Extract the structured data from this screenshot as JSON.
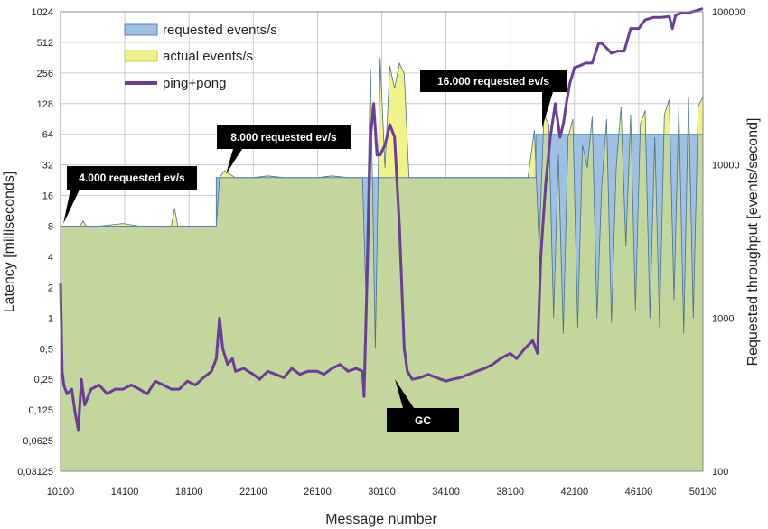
{
  "chart_data": {
    "type": "area",
    "title": "",
    "xlabel": "Message number",
    "ylabel_left": "Latency [milliseconds]",
    "ylabel_right": "Requested throughput [events/second]",
    "x_ticks": [
      "10100",
      "14100",
      "18100",
      "22100",
      "26100",
      "30100",
      "34100",
      "38100",
      "42100",
      "46100",
      "50100"
    ],
    "y_left_ticks": [
      "1024",
      "512",
      "256",
      "128",
      "64",
      "32",
      "16",
      "8",
      "4",
      "2",
      "1",
      "0,5",
      "0,25",
      "0,125",
      "0,0625",
      "0,03125"
    ],
    "y_right_ticks": [
      "100000",
      "10000",
      "1000",
      "100"
    ],
    "xlim": [
      10100,
      50100
    ],
    "ylim_left": [
      0.03125,
      1024
    ],
    "ylim_right": [
      100,
      100000
    ],
    "y_left_scale": "log2",
    "y_right_scale": "log10",
    "grid": true,
    "legend_position": "top-left",
    "colors": {
      "requested": "#9ec0e4",
      "requested_edge": "#4f81bd",
      "actual": "#f2f28a",
      "ping_pong": "#6a3d9a",
      "overlap": "#c3d69b",
      "grid": "#bfbfbf"
    },
    "legend": {
      "requested": "requested events/s",
      "actual": "actual events/s",
      "ping_pong": "ping+pong"
    },
    "annotations": [
      {
        "label": "4.000 requested ev/s",
        "x": 10100,
        "y": 8
      },
      {
        "label": "8.000 requested ev/s",
        "x": 19800,
        "y": 24
      },
      {
        "label": "16.000 requested ev/s",
        "x": 39700,
        "y": 64
      },
      {
        "label": "GC",
        "x": 31300,
        "y": 0.25
      }
    ],
    "series": [
      {
        "name": "requested events/s",
        "type": "area",
        "axis": "left",
        "x": [
          10100,
          19800,
          19800,
          39700,
          39700,
          50100
        ],
        "y": [
          8,
          8,
          24,
          24,
          64,
          64
        ]
      },
      {
        "name": "actual events/s",
        "type": "area",
        "axis": "left",
        "x": [
          10100,
          11300,
          11500,
          11700,
          12500,
          14000,
          15000,
          16000,
          17000,
          17200,
          17400,
          18500,
          19800,
          20000,
          20300,
          21000,
          22100,
          23000,
          24000,
          25000,
          26100,
          27000,
          28000,
          28900,
          29100,
          29400,
          29700,
          30000,
          30300,
          30600,
          30900,
          31200,
          31500,
          31800,
          32100,
          32500,
          33000,
          34100,
          35000,
          36000,
          37000,
          38100,
          39200,
          39600,
          39900,
          40200,
          40500,
          40800,
          41100,
          41400,
          41700,
          42000,
          42300,
          42600,
          42900,
          43200,
          43500,
          43800,
          44100,
          44400,
          44700,
          45000,
          45300,
          45600,
          45900,
          46200,
          46500,
          46800,
          47100,
          47400,
          47700,
          48000,
          48300,
          48600,
          48900,
          49200,
          49500,
          49800,
          50100
        ],
        "y": [
          8,
          8,
          9,
          8,
          8,
          8.5,
          8,
          8,
          8,
          12,
          8,
          8,
          8,
          24,
          28,
          24,
          24,
          25,
          24,
          24,
          24,
          25,
          24,
          24,
          2,
          280,
          0.5,
          360,
          30,
          300,
          180,
          320,
          250,
          24,
          24,
          24,
          24,
          24,
          24,
          24,
          24,
          24,
          24,
          70,
          5,
          100,
          80,
          1,
          40,
          0.7,
          60,
          90,
          0.8,
          50,
          30,
          95,
          1,
          20,
          90,
          0.9,
          30,
          120,
          5,
          100,
          1.2,
          80,
          110,
          1,
          60,
          0.8,
          100,
          140,
          1.5,
          120,
          0.7,
          150,
          1,
          120,
          150
        ]
      },
      {
        "name": "ping+pong",
        "type": "line",
        "axis": "left",
        "x": [
          10100,
          10200,
          10300,
          10500,
          10800,
          11000,
          11200,
          11400,
          11600,
          12000,
          12500,
          13000,
          13500,
          14000,
          14500,
          15000,
          15500,
          16000,
          16500,
          17000,
          17500,
          18000,
          18500,
          19000,
          19500,
          19800,
          20000,
          20200,
          20500,
          20800,
          21000,
          21500,
          22100,
          22500,
          23000,
          23500,
          24000,
          24500,
          25000,
          25500,
          26100,
          26500,
          27000,
          27500,
          28000,
          28500,
          28900,
          29000,
          29200,
          29400,
          29600,
          29800,
          30000,
          30300,
          30600,
          30900,
          31200,
          31500,
          31700,
          32000,
          32500,
          33000,
          33500,
          34100,
          34500,
          35000,
          35500,
          36000,
          36500,
          37000,
          37500,
          38100,
          38500,
          39000,
          39500,
          39800,
          40000,
          40300,
          40600,
          40900,
          41200,
          41400,
          41600,
          41800,
          42100,
          42400,
          42800,
          43200,
          43600,
          43800,
          44100,
          44400,
          44800,
          45200,
          45600,
          46100,
          46500,
          47000,
          47500,
          48000,
          48200,
          48400,
          48800,
          49200,
          49600,
          50100
        ],
        "y": [
          2.2,
          0.3,
          0.22,
          0.18,
          0.2,
          0.12,
          0.08,
          0.25,
          0.14,
          0.2,
          0.22,
          0.18,
          0.2,
          0.2,
          0.22,
          0.2,
          0.18,
          0.24,
          0.22,
          0.2,
          0.2,
          0.24,
          0.22,
          0.26,
          0.3,
          0.4,
          1,
          0.5,
          0.35,
          0.4,
          0.3,
          0.32,
          0.28,
          0.25,
          0.3,
          0.28,
          0.26,
          0.32,
          0.28,
          0.3,
          0.3,
          0.28,
          0.32,
          0.35,
          0.3,
          0.32,
          0.3,
          0.17,
          3,
          60,
          128,
          40,
          40,
          50,
          80,
          60,
          8,
          0.5,
          0.3,
          0.25,
          0.26,
          0.28,
          0.26,
          0.24,
          0.25,
          0.26,
          0.28,
          0.3,
          0.32,
          0.35,
          0.4,
          0.45,
          0.4,
          0.5,
          0.6,
          0.45,
          4,
          20,
          60,
          128,
          60,
          80,
          130,
          200,
          290,
          300,
          320,
          320,
          500,
          500,
          450,
          400,
          420,
          420,
          700,
          700,
          850,
          900,
          900,
          920,
          700,
          950,
          1000,
          1000,
          1040,
          1100
        ]
      }
    ]
  }
}
